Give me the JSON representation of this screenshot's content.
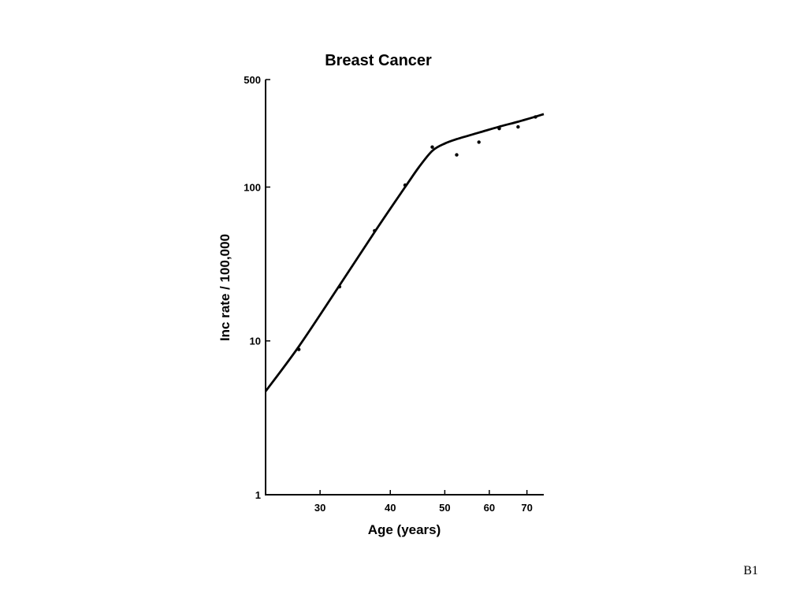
{
  "slide_label": "B1",
  "chart_data": {
    "type": "line",
    "title": "Breast Cancer",
    "xlabel": "Age (years)",
    "ylabel": "Inc rate / 100,000",
    "xscale": "log",
    "yscale": "log",
    "xlim": [
      24,
      75
    ],
    "ylim": [
      1,
      500
    ],
    "x_ticks": [
      30,
      40,
      50,
      60,
      70
    ],
    "y_ticks": [
      1,
      10,
      100,
      500
    ],
    "grid": false,
    "points": {
      "x": [
        27.5,
        32.5,
        37.5,
        42.5,
        47.5,
        52.5,
        57.5,
        62.5,
        67.5,
        72.5
      ],
      "y": [
        8.8,
        22.5,
        52,
        103,
        182,
        162,
        196,
        240,
        246,
        286
      ]
    },
    "fit_curve": {
      "x": [
        24,
        27.5,
        32.5,
        37.5,
        42.5,
        45,
        47.5,
        50,
        52.5,
        57.5,
        62.5,
        67.5,
        72.5,
        75
      ],
      "y": [
        4.7,
        9.2,
        23,
        51,
        100,
        135,
        172,
        192,
        205,
        226,
        247,
        266,
        287,
        298
      ]
    },
    "line_color": "#000000"
  }
}
